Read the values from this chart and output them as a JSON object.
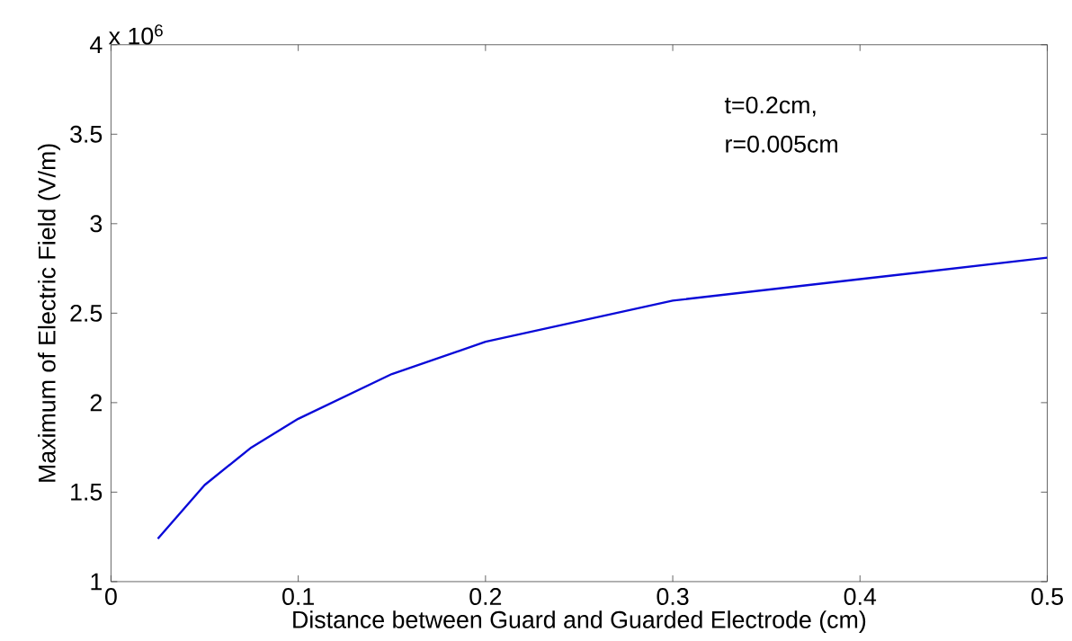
{
  "chart_data": {
    "type": "line",
    "xlabel": "Distance between Guard and Guarded Electrode (cm)",
    "ylabel": "Maximum of Electric Field (V/m)",
    "annotations": [
      "x 10$^{6}$",
      "t=0.2cm,",
      "r=0.005cm"
    ],
    "x": [
      0.025,
      0.05,
      0.075,
      0.1,
      0.15,
      0.2,
      0.3,
      0.4,
      0.5
    ],
    "series": [
      {
        "color": "#0a0ad8",
        "values": [
          1.24,
          1.54,
          1.75,
          1.91,
          2.16,
          2.34,
          2.57,
          2.69,
          2.81
        ]
      }
    ],
    "xlim": [
      0,
      0.5
    ],
    "ylim": [
      1,
      4
    ],
    "xticks": [
      0,
      0.1,
      0.2,
      0.3,
      0.4,
      0.5
    ],
    "yticks": [
      1,
      1.5,
      2,
      2.5,
      3,
      3.5,
      4
    ]
  }
}
